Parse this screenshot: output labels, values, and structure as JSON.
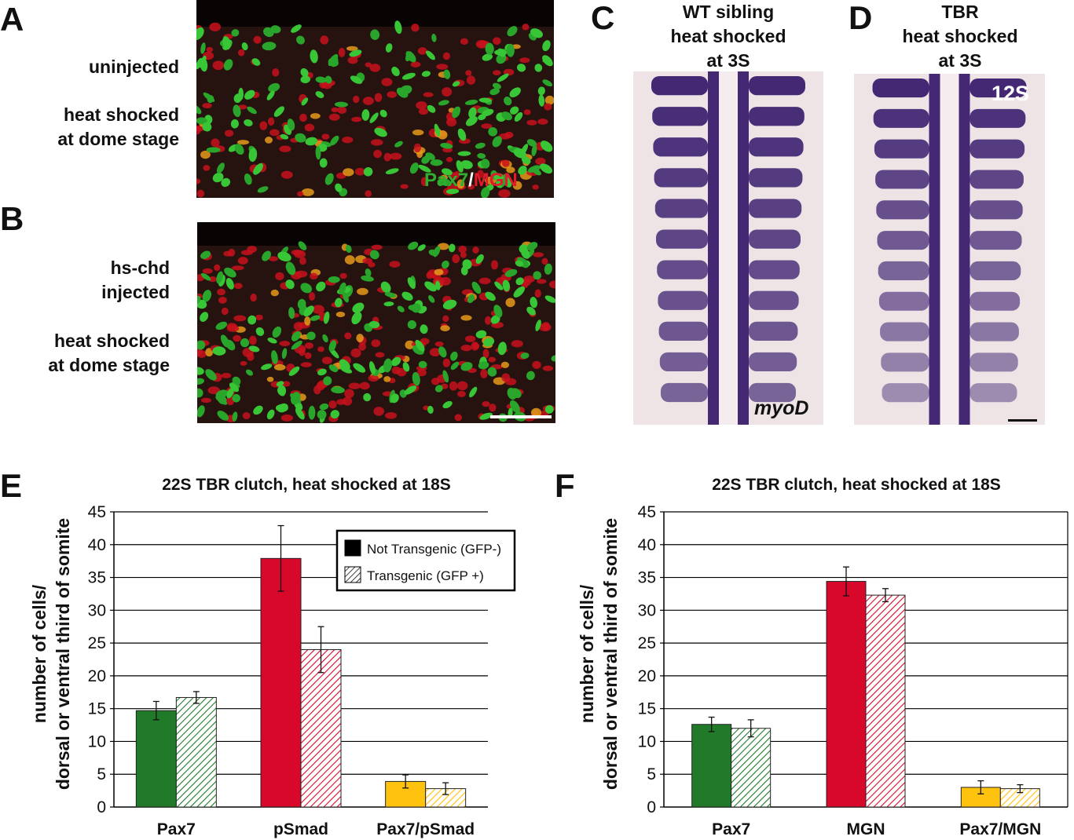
{
  "panels": {
    "A": {
      "letter": "A",
      "label_line1": "uninjected",
      "label_line2": "heat shocked",
      "label_line3": "at dome stage",
      "stain_green": "Pax7",
      "stain_sep": "/",
      "stain_red": "MGN"
    },
    "B": {
      "letter": "B",
      "label_line1": "hs-chd",
      "label_line2": "injected",
      "label_line3": "heat shocked",
      "label_line4": "at dome stage"
    },
    "C": {
      "letter": "C",
      "title_line1": "WT sibling",
      "title_line2": "heat shocked",
      "title_line3": "at 3S",
      "probe": "myoD"
    },
    "D": {
      "letter": "D",
      "title_line1": "TBR",
      "title_line2": "heat shocked",
      "title_line3": "at 3S",
      "stage": "12S"
    },
    "E": {
      "letter": "E"
    },
    "F": {
      "letter": "F"
    }
  },
  "colors": {
    "pax7": "#217a2a",
    "red": "#d8082a",
    "yellow": "#ffc20e",
    "stain_purple": "#3a1e6e",
    "tissue_bg": "#eee4e6"
  },
  "chart_data": [
    {
      "type": "bar",
      "title": "22S TBR clutch, heat shocked at 18S",
      "ylabel_line1": "number of cells/",
      "ylabel_line2": "dorsal or ventral third of somite",
      "ylim": [
        0,
        45
      ],
      "yticks": [
        0,
        5,
        10,
        15,
        20,
        25,
        30,
        35,
        40,
        45
      ],
      "grid": true,
      "legend_position": "top-right",
      "categories": [
        "Pax7",
        "pSmad",
        "Pax7/pSmad"
      ],
      "category_colors": [
        "#217a2a",
        "#d8082a",
        "#ffc20e"
      ],
      "series": [
        {
          "name": "Not Transgenic (GFP-)",
          "pattern": "solid",
          "values": [
            14.7,
            37.9,
            3.9
          ],
          "errors": [
            1.4,
            5.0,
            1.0
          ]
        },
        {
          "name": "Transgenic (GFP +)",
          "pattern": "hatched",
          "values": [
            16.7,
            24.0,
            2.8
          ],
          "errors": [
            0.9,
            3.5,
            0.9
          ]
        }
      ]
    },
    {
      "type": "bar",
      "title": "22S TBR clutch, heat shocked at 18S",
      "ylabel_line1": "number of cells/",
      "ylabel_line2": "dorsal or ventral third of somite",
      "ylim": [
        0,
        45
      ],
      "yticks": [
        0,
        5,
        10,
        15,
        20,
        25,
        30,
        35,
        40,
        45
      ],
      "grid": true,
      "categories": [
        "Pax7",
        "MGN",
        "Pax7/MGN"
      ],
      "category_colors": [
        "#217a2a",
        "#d8082a",
        "#ffc20e"
      ],
      "series": [
        {
          "pattern": "solid",
          "values": [
            12.6,
            34.4,
            3.0
          ],
          "errors": [
            1.1,
            2.2,
            1.0
          ]
        },
        {
          "pattern": "hatched",
          "values": [
            12.0,
            32.3,
            2.8
          ],
          "errors": [
            1.3,
            1.0,
            0.6
          ]
        }
      ]
    }
  ]
}
